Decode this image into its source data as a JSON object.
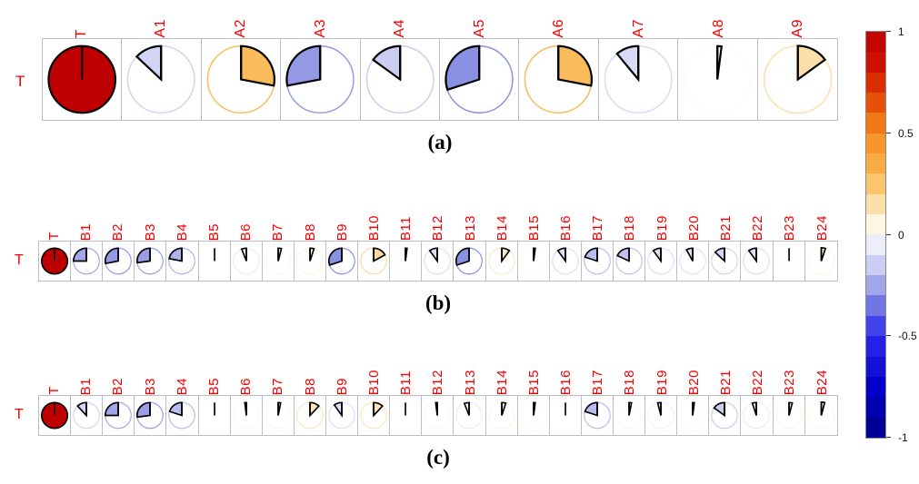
{
  "chart_data": [
    {
      "type": "heatmap",
      "subtype": "correlation-pie-row",
      "title": "(a)",
      "row_label": "T",
      "categories": [
        "T",
        "A1",
        "A2",
        "A3",
        "A4",
        "A5",
        "A6",
        "A7",
        "A8",
        "A9"
      ],
      "values": [
        1.0,
        -0.13,
        0.28,
        -0.28,
        -0.15,
        -0.3,
        0.28,
        -0.11,
        0.02,
        0.15
      ],
      "value_range": [
        -1,
        1
      ],
      "legend_position": "right-colorbar"
    },
    {
      "type": "heatmap",
      "subtype": "correlation-pie-row",
      "title": "(b)",
      "row_label": "T",
      "categories": [
        "T",
        "B1",
        "B2",
        "B3",
        "B4",
        "B5",
        "B6",
        "B7",
        "B8",
        "B9",
        "B10",
        "B11",
        "B12",
        "B13",
        "B14",
        "B15",
        "B16",
        "B17",
        "B18",
        "B19",
        "B20",
        "B21",
        "B22",
        "B23",
        "B24"
      ],
      "values": [
        1.0,
        -0.25,
        -0.28,
        -0.27,
        -0.22,
        0.0,
        -0.06,
        0.04,
        0.05,
        -0.3,
        0.17,
        0.02,
        -0.1,
        -0.3,
        0.1,
        0.02,
        -0.1,
        -0.2,
        -0.18,
        -0.1,
        -0.08,
        -0.13,
        -0.1,
        0.0,
        0.05
      ],
      "value_range": [
        -1,
        1
      ],
      "legend_position": "right-colorbar"
    },
    {
      "type": "heatmap",
      "subtype": "correlation-pie-row",
      "title": "(c)",
      "row_label": "T",
      "categories": [
        "T",
        "B1",
        "B2",
        "B3",
        "B4",
        "B5",
        "B6",
        "B7",
        "B8",
        "B9",
        "B10",
        "B11",
        "B12",
        "B13",
        "B14",
        "B15",
        "B16",
        "B17",
        "B18",
        "B19",
        "B20",
        "B21",
        "B22",
        "B23",
        "B24"
      ],
      "values": [
        1.0,
        -0.12,
        -0.25,
        -0.27,
        -0.2,
        0.0,
        -0.02,
        0.03,
        0.12,
        -0.1,
        0.12,
        0.0,
        -0.02,
        -0.06,
        0.05,
        0.02,
        0.0,
        -0.2,
        0.03,
        -0.04,
        0.02,
        -0.15,
        -0.05,
        0.04,
        0.04
      ],
      "value_range": [
        -1,
        1
      ],
      "legend_position": "right-colorbar"
    }
  ],
  "colorbar": {
    "tick_labels": [
      "1",
      "0.5",
      "0",
      "-0.5",
      "-1"
    ],
    "tick_values": [
      1,
      0.5,
      0,
      -0.5,
      -1
    ],
    "bands": 20,
    "min": -1,
    "max": 1,
    "palette_pos": [
      [
        0,
        "#FFFFFF"
      ],
      [
        0.1,
        "#FDEBC8"
      ],
      [
        0.2,
        "#FCD389"
      ],
      [
        0.3,
        "#FAB550"
      ],
      [
        0.5,
        "#F78C1E"
      ],
      [
        0.7,
        "#E13C00"
      ],
      [
        0.85,
        "#CC1100"
      ],
      [
        1,
        "#BE0000"
      ]
    ],
    "palette_neg": [
      [
        0,
        "#FFFFFF"
      ],
      [
        0.1,
        "#DDDDF7"
      ],
      [
        0.2,
        "#B8BCEF"
      ],
      [
        0.3,
        "#8A90E2"
      ],
      [
        0.5,
        "#2A2AEE"
      ],
      [
        0.75,
        "#0000C8"
      ],
      [
        1,
        "#00008B"
      ]
    ]
  },
  "styles": {
    "label_color": "#F40000",
    "grid_border": "#BDBDBD",
    "wedge_outline": "#000000"
  }
}
